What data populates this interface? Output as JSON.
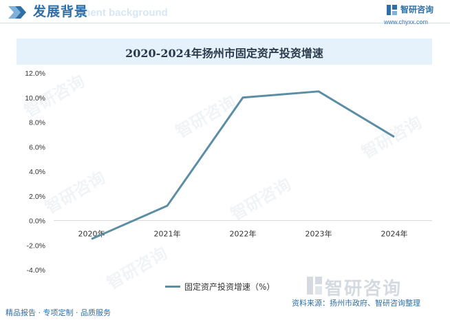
{
  "header": {
    "title": "发展背景",
    "subtitle": "ment background",
    "brand_name": "智研咨询",
    "brand_url": "www.chyxx.com"
  },
  "chart_data": {
    "type": "line",
    "title": "2020-2024年扬州市固定资产投资增速",
    "categories": [
      "2020年",
      "2021年",
      "2022年",
      "2023年",
      "2024年"
    ],
    "series": [
      {
        "name": "固定资产投资增速（%）",
        "values": [
          -1.5,
          1.2,
          10.0,
          10.5,
          6.8
        ],
        "color": "#5b8ea4"
      }
    ],
    "ylim": [
      -4.0,
      12.0
    ],
    "yticks": [
      "12.0%",
      "10.0%",
      "8.0%",
      "6.0%",
      "4.0%",
      "2.0%",
      "0.0%",
      "-2.0%",
      "-4.0%"
    ],
    "ytick_values": [
      12,
      10,
      8,
      6,
      4,
      2,
      0,
      -2,
      -4
    ],
    "grid": false,
    "legend": "bottom"
  },
  "footer": {
    "left": "精品报告 · 专项定制 · 品质服务",
    "source": "资料来源：扬州市政府、智研咨询整理"
  },
  "watermark": {
    "text": "智研咨询"
  }
}
